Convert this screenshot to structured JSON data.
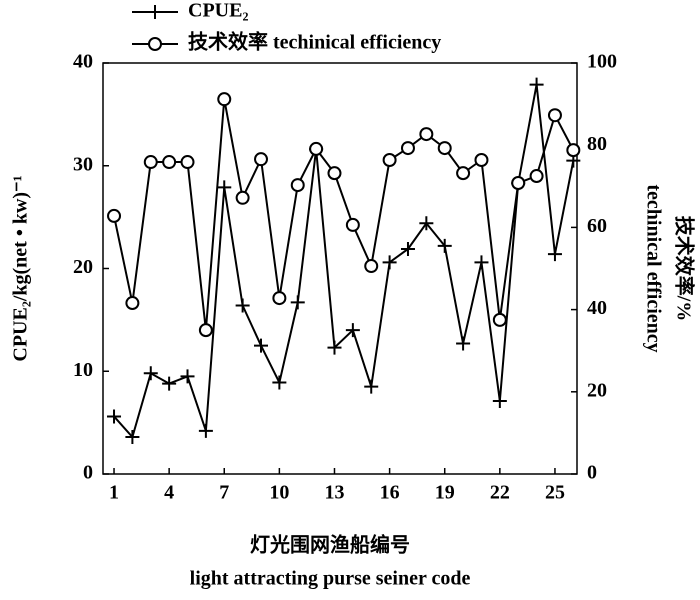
{
  "chart_data": {
    "type": "line",
    "x": [
      1,
      2,
      3,
      4,
      5,
      6,
      7,
      8,
      9,
      10,
      11,
      12,
      13,
      14,
      15,
      16,
      17,
      18,
      19,
      20,
      21,
      22,
      23,
      24,
      25,
      26
    ],
    "xlim": [
      0.4,
      26.2
    ],
    "xticks": [
      1,
      4,
      7,
      10,
      13,
      16,
      19,
      22,
      25
    ],
    "ylim": [
      0,
      40
    ],
    "yticks": [
      0,
      10,
      20,
      30,
      40
    ],
    "y2lim": [
      0,
      100
    ],
    "y2ticks": [
      0,
      20,
      40,
      60,
      80,
      100
    ],
    "y_label": "CPUE₂/kg(net • kw)⁻¹",
    "y2_label": [
      "技术效率/%",
      "techinical efficiency"
    ],
    "x_label": [
      "灯光围网渔船编号",
      "light attracting purse seiner code"
    ],
    "legend": "top-left",
    "series": [
      {
        "name": "CPUE₂",
        "color": "#000000",
        "marker": "plus",
        "values": [
          5.6,
          3.6,
          9.8,
          8.8,
          9.5,
          4.2,
          27.9,
          16.4,
          12.5,
          8.9,
          16.7,
          31.6,
          12.3,
          14.0,
          8.5,
          20.6,
          21.9,
          24.4,
          22.2,
          12.7,
          20.6,
          7.1,
          28.3,
          37.9,
          21.4,
          30.5
        ]
      },
      {
        "name": "技术效率 techinical efficiency",
        "color": "#000000",
        "marker": "circle",
        "axis": "y2",
        "values": [
          62.8,
          41.6,
          75.9,
          75.9,
          75.9,
          35.0,
          91.2,
          67.2,
          76.6,
          42.8,
          70.3,
          79.1,
          73.2,
          60.6,
          50.6,
          76.4,
          79.3,
          82.7,
          79.3,
          73.2,
          76.4,
          37.5,
          70.8,
          72.5,
          87.3,
          78.8
        ]
      }
    ]
  }
}
